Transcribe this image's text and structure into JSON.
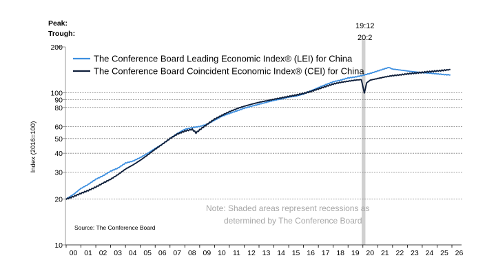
{
  "chart_data": {
    "type": "line",
    "ylabel": "Index (2016=100)",
    "yscale": "log",
    "ylim": [
      10,
      200
    ],
    "yticks": [
      {
        "value": 200,
        "label": "200"
      },
      {
        "value": 100,
        "label": "100"
      },
      {
        "value": 90,
        "label": "90"
      },
      {
        "value": 80,
        "label": "80"
      },
      {
        "value": 60,
        "label": "60"
      },
      {
        "value": 50,
        "label": "50"
      },
      {
        "value": 40,
        "label": "40"
      },
      {
        "value": 30,
        "label": "30"
      },
      {
        "value": 20,
        "label": "20"
      },
      {
        "value": 10,
        "label": "10"
      }
    ],
    "xlim": [
      2000.0,
      2026.0
    ],
    "xtick_labels": [
      "00",
      "01",
      "02",
      "03",
      "04",
      "05",
      "06",
      "07",
      "08",
      "09",
      "10",
      "11",
      "12",
      "13",
      "14",
      "15",
      "16",
      "17",
      "18",
      "19",
      "20",
      "21",
      "22",
      "23",
      "24",
      "25",
      "26"
    ],
    "peak_label": "Peak:",
    "trough_label": "Trough:",
    "recessions": [
      {
        "peak": "19:12",
        "trough": "20:2",
        "start": 2019.92,
        "end": 2020.17
      }
    ],
    "note": [
      "Note: Shaded areas represent recessions as",
      "determined by The Conference Board"
    ],
    "source": "Source: The Conference Board",
    "legend_position": "top-left",
    "series": [
      {
        "name": "The Conference Board Leading Economic Index® (LEI) for China",
        "color": "#3d8fe0",
        "x": [
          2000.0,
          2000.5,
          2001.0,
          2001.5,
          2002.0,
          2002.5,
          2003.0,
          2003.5,
          2004.0,
          2004.5,
          2005.0,
          2005.5,
          2006.0,
          2006.5,
          2007.0,
          2007.5,
          2008.0,
          2008.5,
          2009.0,
          2009.5,
          2010.0,
          2010.5,
          2011.0,
          2011.5,
          2012.0,
          2012.5,
          2013.0,
          2013.5,
          2014.0,
          2014.5,
          2015.0,
          2015.5,
          2016.0,
          2016.5,
          2017.0,
          2017.5,
          2018.0,
          2018.5,
          2019.0,
          2019.5,
          2020.0,
          2020.5,
          2021.0,
          2021.5,
          2021.75,
          2022.0,
          2022.5,
          2023.0,
          2023.5,
          2024.0,
          2024.5,
          2025.0,
          2025.5,
          2025.9
        ],
        "values": [
          20.0,
          21.5,
          23.5,
          25.0,
          27.0,
          28.5,
          30.5,
          32.0,
          34.5,
          35.5,
          37.5,
          40.0,
          43.0,
          46.0,
          50.0,
          54.0,
          57.5,
          59.0,
          60.0,
          62.0,
          66.0,
          70.0,
          73.0,
          76.0,
          79.0,
          81.5,
          84.0,
          86.5,
          89.0,
          91.0,
          93.5,
          95.0,
          98.0,
          103.0,
          108.0,
          113.0,
          118.0,
          121.0,
          125.0,
          127.0,
          130.0,
          134.0,
          139.0,
          144.0,
          146.5,
          143.0,
          141.0,
          139.0,
          137.0,
          135.5,
          134.5,
          133.0,
          131.5,
          131.0
        ]
      },
      {
        "name": "The Conference Board Coincident Economic Index® (CEI) for China",
        "color": "#0f1f3a",
        "x": [
          2000.0,
          2000.5,
          2001.0,
          2001.5,
          2002.0,
          2002.5,
          2003.0,
          2003.5,
          2004.0,
          2004.5,
          2005.0,
          2005.5,
          2006.0,
          2006.5,
          2007.0,
          2007.5,
          2008.0,
          2008.5,
          2008.75,
          2009.0,
          2009.5,
          2010.0,
          2010.5,
          2011.0,
          2011.5,
          2012.0,
          2012.5,
          2013.0,
          2013.5,
          2014.0,
          2014.5,
          2015.0,
          2015.5,
          2016.0,
          2016.5,
          2017.0,
          2017.5,
          2018.0,
          2018.5,
          2019.0,
          2019.5,
          2019.9,
          2020.1,
          2020.25,
          2020.5,
          2021.0,
          2021.5,
          2022.0,
          2022.5,
          2023.0,
          2023.5,
          2024.0,
          2024.5,
          2025.0,
          2025.5,
          2025.9
        ],
        "values": [
          20.0,
          20.8,
          21.8,
          22.8,
          24.0,
          25.5,
          27.0,
          29.0,
          31.5,
          33.5,
          36.0,
          39.0,
          42.5,
          46.0,
          50.0,
          53.5,
          56.0,
          57.5,
          54.5,
          57.0,
          62.0,
          67.0,
          71.0,
          75.0,
          78.5,
          81.5,
          84.0,
          86.5,
          88.5,
          90.5,
          92.5,
          94.5,
          96.5,
          99.0,
          102.0,
          106.0,
          110.0,
          114.0,
          117.0,
          119.0,
          121.0,
          122.0,
          99.0,
          116.0,
          121.0,
          124.0,
          127.0,
          129.5,
          131.0,
          133.0,
          134.5,
          136.0,
          137.5,
          139.0,
          140.5,
          142.0
        ]
      }
    ]
  }
}
